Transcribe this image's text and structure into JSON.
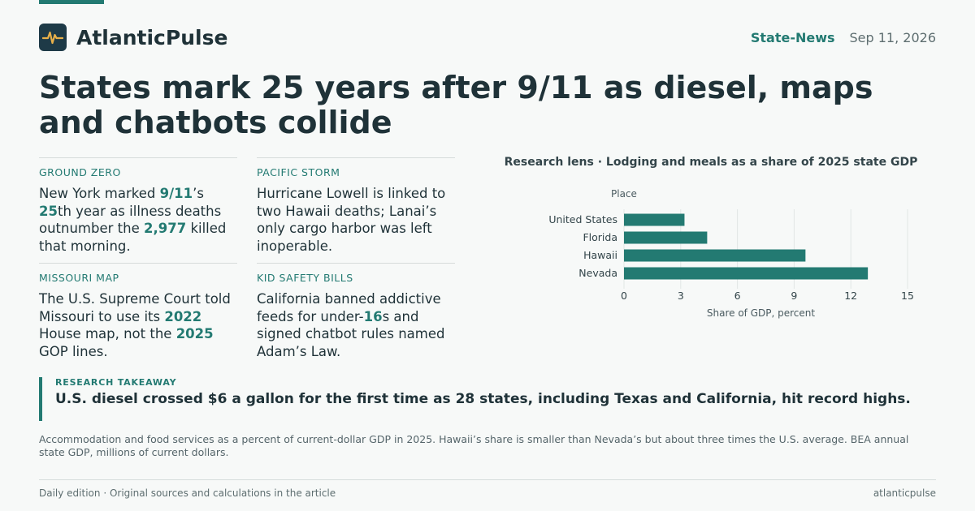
{
  "brand": {
    "name": "AtlanticPulse",
    "logo_icon": "pulse-icon"
  },
  "header": {
    "section": "State-News",
    "date": "Sep 11, 2026"
  },
  "headline": "States mark 25 years after 9/11 as diesel, maps and chatbots collide",
  "cards": [
    {
      "kicker": "GROUND ZERO",
      "parts": [
        {
          "t": "New York marked "
        },
        {
          "t": "9/11",
          "b": true
        },
        {
          "t": "’s "
        },
        {
          "t": "25",
          "b": true
        },
        {
          "t": "th year as illness deaths outnumber the "
        },
        {
          "t": "2,977",
          "b": true
        },
        {
          "t": " killed that morning."
        }
      ]
    },
    {
      "kicker": "PACIFIC STORM",
      "parts": [
        {
          "t": "Hurricane Lowell is linked to two Hawaii deaths; Lanai’s only cargo harbor was left inoperable."
        }
      ]
    },
    {
      "kicker": "MISSOURI MAP",
      "parts": [
        {
          "t": "The U.S. Supreme Court told Missouri to use its "
        },
        {
          "t": "2022",
          "b": true
        },
        {
          "t": " House map, not the "
        },
        {
          "t": "2025",
          "b": true
        },
        {
          "t": " GOP lines."
        }
      ]
    },
    {
      "kicker": "KID SAFETY BILLS",
      "parts": [
        {
          "t": "California banned addictive feeds for under-"
        },
        {
          "t": "16",
          "b": true
        },
        {
          "t": "s and signed chatbot rules named Adam’s Law."
        }
      ]
    }
  ],
  "chart_data": {
    "type": "bar",
    "orientation": "horizontal",
    "title": "Research lens · Lodging and meals as a share of 2025 state GDP",
    "ylabel": "Place",
    "xlabel": "Share of GDP, percent",
    "categories": [
      "United States",
      "Florida",
      "Hawaii",
      "Nevada"
    ],
    "values": [
      3.2,
      4.4,
      9.6,
      12.9
    ],
    "xlim": [
      0,
      15
    ],
    "xticks": [
      0,
      3,
      6,
      9,
      12,
      15
    ],
    "grid": true,
    "bar_color": "#237a72"
  },
  "takeaway": {
    "kicker": "RESEARCH TAKEAWAY",
    "text": "U.S. diesel crossed $6 a gallon for the first time as 28 states, including Texas and California, hit record highs."
  },
  "note": "Accommodation and food services as a percent of current-dollar GDP in 2025. Hawaii’s share is smaller than Nevada’s but about three times the U.S. average. BEA annual state GDP, millions of current dollars.",
  "footer": {
    "left": "Daily edition · Original sources and calculations in the article",
    "right": "atlanticpulse"
  },
  "colors": {
    "accent": "#237a72",
    "text": "#1f3238",
    "logo_bg": "#1e3a47",
    "logo_line": "#e8b04a"
  }
}
